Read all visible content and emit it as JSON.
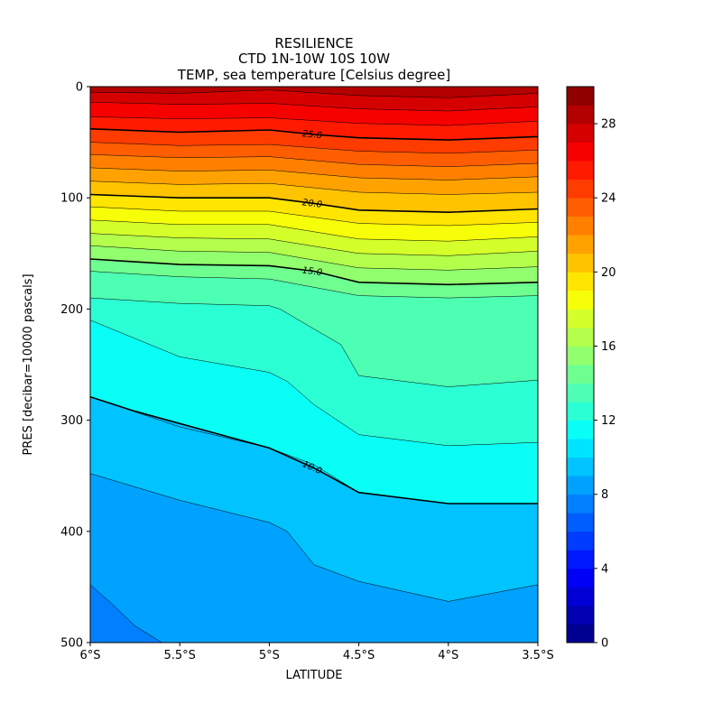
{
  "chart_data": {
    "type": "contour",
    "title_lines": [
      "RESILIENCE",
      "CTD 1N-10W 10S 10W",
      "TEMP, sea temperature [Celsius degree]"
    ],
    "xlabel": "LATITUDE",
    "ylabel": "PRES [decibar=10000 pascals]",
    "xlim": [
      -6,
      -3.5
    ],
    "ylim": [
      500,
      0
    ],
    "x_ticks": [
      -6,
      -5.5,
      -5,
      -4.5,
      -4,
      -3.5
    ],
    "x_tick_labels": [
      "6°S",
      "5.5°S",
      "5°S",
      "4.5°S",
      "4°S",
      "3.5°S"
    ],
    "y_ticks": [
      0,
      100,
      200,
      300,
      400,
      500
    ],
    "y_tick_labels": [
      "0",
      "100",
      "200",
      "300",
      "400",
      "500"
    ],
    "colorbar": {
      "min": 0,
      "max": 30,
      "step": 1,
      "ticks": [
        0,
        4,
        8,
        12,
        16,
        20,
        24,
        28
      ],
      "tick_labels": [
        "0",
        "4",
        "8",
        "12",
        "16",
        "20",
        "24",
        "28"
      ]
    },
    "contour_labels": [
      {
        "level": 25,
        "text": "25.0"
      },
      {
        "level": 20,
        "text": "20.0"
      },
      {
        "level": 15,
        "text": "15.0"
      },
      {
        "level": 10,
        "text": "10.0"
      }
    ],
    "isotherms": [
      {
        "level": 29,
        "points": [
          [
            -6,
            0
          ],
          [
            -5.5,
            0
          ],
          [
            -5,
            0
          ],
          [
            -4.5,
            0
          ],
          [
            -4,
            0
          ],
          [
            -3.5,
            0
          ]
        ]
      },
      {
        "level": 28,
        "points": [
          [
            -6,
            5
          ],
          [
            -5.5,
            6
          ],
          [
            -5,
            3
          ],
          [
            -4.5,
            8
          ],
          [
            -4,
            10
          ],
          [
            -3.5,
            6
          ]
        ]
      },
      {
        "level": 27,
        "points": [
          [
            -6,
            14
          ],
          [
            -5.5,
            16
          ],
          [
            -5,
            15
          ],
          [
            -4.5,
            20
          ],
          [
            -4,
            22
          ],
          [
            -3.5,
            18
          ]
        ]
      },
      {
        "level": 26,
        "points": [
          [
            -6,
            27
          ],
          [
            -5.5,
            29
          ],
          [
            -5,
            28
          ],
          [
            -4.5,
            33
          ],
          [
            -4,
            35
          ],
          [
            -3.5,
            31
          ]
        ]
      },
      {
        "level": 25,
        "bold": true,
        "points": [
          [
            -6,
            38
          ],
          [
            -5.5,
            41
          ],
          [
            -5,
            39
          ],
          [
            -4.75,
            43
          ],
          [
            -4.5,
            46
          ],
          [
            -4,
            48
          ],
          [
            -3.5,
            45
          ]
        ]
      },
      {
        "level": 24,
        "points": [
          [
            -6,
            50
          ],
          [
            -5.5,
            53
          ],
          [
            -5,
            52
          ],
          [
            -4.5,
            58
          ],
          [
            -4,
            60
          ],
          [
            -3.5,
            57
          ]
        ]
      },
      {
        "level": 23,
        "points": [
          [
            -6,
            61
          ],
          [
            -5.5,
            64
          ],
          [
            -5,
            63
          ],
          [
            -4.5,
            70
          ],
          [
            -4,
            72
          ],
          [
            -3.5,
            69
          ]
        ]
      },
      {
        "level": 22,
        "points": [
          [
            -6,
            73
          ],
          [
            -5.5,
            76
          ],
          [
            -5,
            75
          ],
          [
            -4.5,
            82
          ],
          [
            -4,
            84
          ],
          [
            -3.5,
            81
          ]
        ]
      },
      {
        "level": 21,
        "points": [
          [
            -6,
            85
          ],
          [
            -5.5,
            88
          ],
          [
            -5,
            87
          ],
          [
            -4.5,
            95
          ],
          [
            -4,
            97
          ],
          [
            -3.5,
            95
          ]
        ]
      },
      {
        "level": 20,
        "bold": true,
        "points": [
          [
            -6,
            97
          ],
          [
            -5.5,
            100
          ],
          [
            -5,
            100
          ],
          [
            -4.75,
            105
          ],
          [
            -4.5,
            111
          ],
          [
            -4,
            113
          ],
          [
            -3.5,
            110
          ]
        ]
      },
      {
        "level": 19,
        "points": [
          [
            -6,
            108
          ],
          [
            -5.5,
            112
          ],
          [
            -5,
            112
          ],
          [
            -4.5,
            123
          ],
          [
            -4,
            125
          ],
          [
            -3.5,
            122
          ]
        ]
      },
      {
        "level": 18,
        "points": [
          [
            -6,
            120
          ],
          [
            -5.5,
            124
          ],
          [
            -5,
            124
          ],
          [
            -4.5,
            137
          ],
          [
            -4,
            139
          ],
          [
            -3.5,
            135
          ]
        ]
      },
      {
        "level": 17,
        "points": [
          [
            -6,
            132
          ],
          [
            -5.5,
            136
          ],
          [
            -5,
            137
          ],
          [
            -4.5,
            150
          ],
          [
            -4,
            152
          ],
          [
            -3.5,
            148
          ]
        ]
      },
      {
        "level": 16,
        "points": [
          [
            -6,
            143
          ],
          [
            -5.5,
            148
          ],
          [
            -5,
            149
          ],
          [
            -4.5,
            163
          ],
          [
            -4,
            165
          ],
          [
            -3.5,
            162
          ]
        ]
      },
      {
        "level": 15,
        "bold": true,
        "points": [
          [
            -6,
            155
          ],
          [
            -5.5,
            160
          ],
          [
            -5,
            161
          ],
          [
            -4.75,
            166
          ],
          [
            -4.5,
            176
          ],
          [
            -4,
            178
          ],
          [
            -3.5,
            176
          ]
        ]
      },
      {
        "level": 14,
        "points": [
          [
            -6,
            166
          ],
          [
            -5.5,
            171
          ],
          [
            -5,
            173
          ],
          [
            -4.5,
            188
          ],
          [
            -4,
            190
          ],
          [
            -3.5,
            188
          ]
        ]
      },
      {
        "level": 13,
        "points": [
          [
            -6,
            190
          ],
          [
            -5.5,
            195
          ],
          [
            -5,
            197
          ],
          [
            -4.94,
            200
          ],
          [
            -4.75,
            218
          ],
          [
            -4.6,
            232
          ],
          [
            -4.5,
            260
          ],
          [
            -4,
            270
          ],
          [
            -3.5,
            264
          ]
        ]
      },
      {
        "level": 12,
        "points": [
          [
            -6,
            210
          ],
          [
            -5.5,
            243
          ],
          [
            -5,
            257
          ],
          [
            -4.9,
            265
          ],
          [
            -4.75,
            286
          ],
          [
            -4.5,
            313
          ],
          [
            -4,
            323
          ],
          [
            -3.5,
            320
          ]
        ]
      },
      {
        "level": 11,
        "points": [
          [
            -6,
            279
          ],
          [
            -5.5,
            306
          ],
          [
            -5,
            325
          ],
          [
            -4.75,
            340
          ],
          [
            -4.5,
            365
          ],
          [
            -4,
            375
          ],
          [
            -3.5,
            375
          ]
        ]
      },
      {
        "level": 10,
        "bold": true,
        "points": [
          [
            -6,
            279
          ],
          [
            -5.75,
            292
          ],
          [
            -5.5,
            303
          ],
          [
            -5,
            325
          ],
          [
            -4.75,
            343
          ],
          [
            -4.5,
            365
          ],
          [
            -4,
            375
          ],
          [
            -3.5,
            375
          ]
        ]
      },
      {
        "level": 9,
        "points": [
          [
            -6,
            348
          ],
          [
            -5.5,
            372
          ],
          [
            -5,
            392
          ],
          [
            -4.9,
            400
          ],
          [
            -4.75,
            430
          ],
          [
            -4.5,
            445
          ],
          [
            -4,
            463
          ],
          [
            -3.5,
            448
          ]
        ]
      },
      {
        "level": 8,
        "points": [
          [
            -6,
            448
          ],
          [
            -5.88,
            465
          ],
          [
            -5.75,
            485
          ],
          [
            -5.6,
            500
          ]
        ]
      }
    ]
  }
}
